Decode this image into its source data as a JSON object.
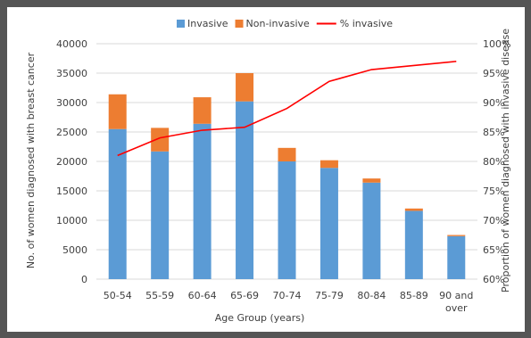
{
  "chart_data": {
    "type": "bar",
    "stacked": true,
    "categories": [
      "50-54",
      "55-59",
      "60-64",
      "65-69",
      "70-74",
      "75-79",
      "80-84",
      "85-89",
      "90 and over"
    ],
    "category_lines": [
      [
        "50-54"
      ],
      [
        "55-59"
      ],
      [
        "60-64"
      ],
      [
        "65-69"
      ],
      [
        "70-74"
      ],
      [
        "75-79"
      ],
      [
        "80-84"
      ],
      [
        "85-89"
      ],
      [
        "90 and",
        "over"
      ]
    ],
    "series": [
      {
        "name": "Invasive",
        "type": "bar",
        "axis": "left",
        "color": "#5b9bd5",
        "values": [
          25500,
          21700,
          26400,
          30200,
          20000,
          18900,
          16400,
          11600,
          7300
        ]
      },
      {
        "name": "Non-invasive",
        "type": "bar",
        "axis": "left",
        "color": "#ed7d31",
        "values": [
          5900,
          4000,
          4500,
          4800,
          2300,
          1300,
          700,
          400,
          200
        ]
      },
      {
        "name": "% invasive",
        "type": "line",
        "axis": "right",
        "color": "#ff0000",
        "values": [
          81.0,
          84.0,
          85.3,
          85.8,
          89.0,
          93.6,
          95.6,
          96.3,
          97.0
        ]
      }
    ],
    "xlabel": "Age Group (years)",
    "ylabel": "No. of women diagnosed with breast cancer",
    "y2label": "Proportion of women diagnosed with invasive disease",
    "ylim": [
      0,
      40000
    ],
    "yticks": [
      0,
      5000,
      10000,
      15000,
      20000,
      25000,
      30000,
      35000,
      40000
    ],
    "y2lim": [
      60,
      100
    ],
    "y2ticks": [
      60,
      65,
      70,
      75,
      80,
      85,
      90,
      95,
      100
    ],
    "y2tick_suffix": "%",
    "legend_position": "top-center",
    "grid": "horizontal"
  }
}
